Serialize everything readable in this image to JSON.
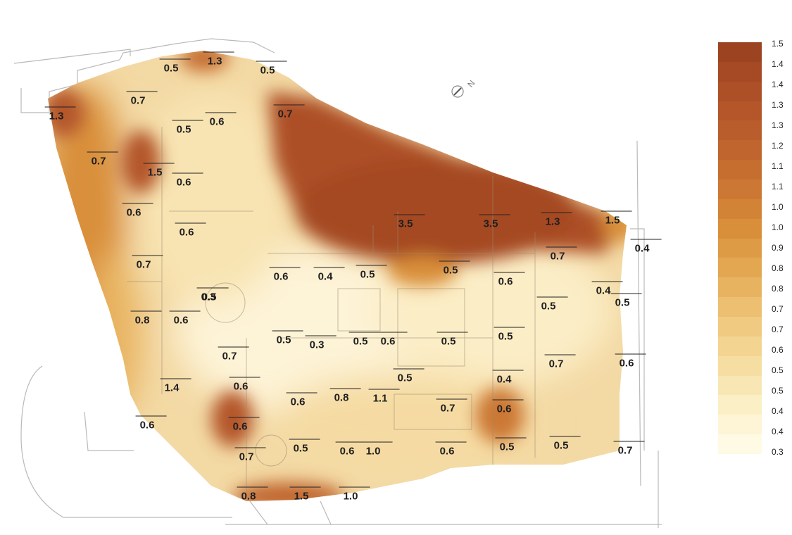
{
  "map": {
    "point_values": [
      "1.3",
      "0.5",
      "0.5",
      "1.3",
      "0.7",
      "0.7",
      "0.6",
      "0.5",
      "0.7",
      "1.5",
      "0.6",
      "0.6",
      "0.6",
      "0.7",
      "0.5",
      "0.8",
      "0.6",
      "3.5",
      "3.5",
      "1.3",
      "1.5",
      "0.4",
      "0.7",
      "0.6",
      "0.4",
      "0.5",
      "0.5",
      "0.6",
      "0.4",
      "0.5",
      "0.5",
      "0.3",
      "0.3",
      "0.5",
      "0.6",
      "0.5",
      "0.5",
      "0.5",
      "0.7",
      "0.6",
      "0.7",
      "0.5",
      "0.4",
      "0.6",
      "0.6",
      "0.8",
      "1.1",
      "0.7",
      "0.6",
      "1.4",
      "0.6",
      "0.6",
      "0.5",
      "0.6",
      "1.0",
      "0.6",
      "0.5",
      "0.5",
      "0.7",
      "0.7",
      "0.8",
      "1.5",
      "1.0"
    ],
    "compass_label": "N"
  },
  "legend": {
    "ticks": [
      "1.5",
      "1.4",
      "1.4",
      "1.3",
      "1.3",
      "1.2",
      "1.1",
      "1.1",
      "1.0",
      "1.0",
      "0.9",
      "0.8",
      "0.8",
      "0.7",
      "0.7",
      "0.6",
      "0.5",
      "0.5",
      "0.4",
      "0.4",
      "0.3"
    ],
    "colors": [
      "#9c4421",
      "#a54a24",
      "#ad5027",
      "#b4562a",
      "#ba5d2c",
      "#c0652d",
      "#c66e30",
      "#cc7834",
      "#d38336",
      "#d98f3a",
      "#de9b45",
      "#e3a752",
      "#e8b361",
      "#ecbf71",
      "#f0ca80",
      "#f3d490",
      "#f6dea2",
      "#f8e7b4",
      "#fbefc6",
      "#fdf5d6",
      "#fefae4"
    ]
  }
}
